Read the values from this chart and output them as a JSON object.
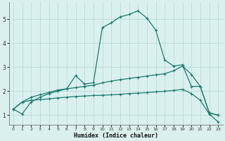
{
  "xlabel": "Humidex (Indice chaleur)",
  "xlim": [
    -0.5,
    23.5
  ],
  "ylim": [
    0.6,
    5.7
  ],
  "xticks": [
    0,
    1,
    2,
    3,
    4,
    5,
    6,
    7,
    8,
    9,
    10,
    11,
    12,
    13,
    14,
    15,
    16,
    17,
    18,
    19,
    20,
    21,
    22,
    23
  ],
  "yticks": [
    1,
    2,
    3,
    4,
    5
  ],
  "bg_color": "#daf0ee",
  "grid_color": "#b0d8d4",
  "line_color": "#1a7a6e",
  "figsize": [
    3.2,
    2.0
  ],
  "dpi": 100,
  "line1_x": [
    0,
    1,
    2,
    3,
    4,
    5,
    6,
    7,
    8,
    9,
    10,
    11,
    12,
    13,
    14,
    15,
    16,
    17,
    18,
    19,
    20,
    21,
    22,
    23
  ],
  "line1_y": [
    1.25,
    1.05,
    1.55,
    1.75,
    1.9,
    2.0,
    2.1,
    2.65,
    2.3,
    2.35,
    4.65,
    4.85,
    5.1,
    5.2,
    5.35,
    5.05,
    4.55,
    3.3,
    3.05,
    3.1,
    2.2,
    2.2,
    1.1,
    1.0
  ],
  "line2_x": [
    0,
    1,
    2,
    3,
    4,
    5,
    6,
    7,
    8,
    9,
    10,
    11,
    12,
    13,
    14,
    15,
    16,
    17,
    18,
    19,
    20,
    21,
    22,
    23
  ],
  "line2_y": [
    1.25,
    1.55,
    1.75,
    1.85,
    1.95,
    2.05,
    2.1,
    2.15,
    2.2,
    2.25,
    2.35,
    2.42,
    2.48,
    2.53,
    2.58,
    2.63,
    2.68,
    2.73,
    2.85,
    3.05,
    2.7,
    2.2,
    1.1,
    1.0
  ],
  "line3_x": [
    0,
    1,
    2,
    3,
    4,
    5,
    6,
    7,
    8,
    9,
    10,
    11,
    12,
    13,
    14,
    15,
    16,
    17,
    18,
    19,
    20,
    21,
    22,
    23
  ],
  "line3_y": [
    1.25,
    1.55,
    1.62,
    1.65,
    1.68,
    1.72,
    1.75,
    1.78,
    1.8,
    1.82,
    1.83,
    1.85,
    1.87,
    1.9,
    1.92,
    1.94,
    1.97,
    2.0,
    2.03,
    2.08,
    1.9,
    1.62,
    1.05,
    0.72
  ]
}
